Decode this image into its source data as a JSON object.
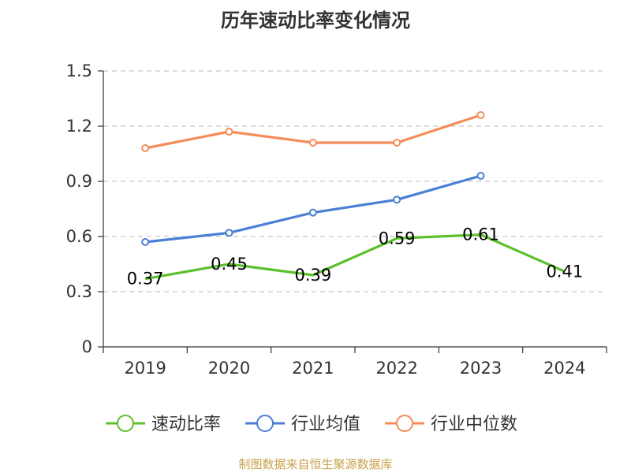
{
  "chart_data": {
    "type": "line",
    "title": "历年速动比率变化情况",
    "categories": [
      "2019",
      "2020",
      "2021",
      "2022",
      "2023",
      "2024"
    ],
    "yticks": [
      "0",
      "0.3",
      "0.6",
      "0.9",
      "1.2",
      "1.5"
    ],
    "ylim": [
      0,
      1.5
    ],
    "grid": true,
    "legend_position": "bottom",
    "series": [
      {
        "name": "速动比率",
        "color": "#5cc02c",
        "values": [
          0.37,
          0.45,
          0.39,
          0.59,
          0.61,
          0.41
        ],
        "labels": [
          "0.37",
          "0.45",
          "0.39",
          "0.59",
          "0.61",
          "0.41"
        ],
        "markers": false
      },
      {
        "name": "行业均值",
        "color": "#4a7fd6",
        "values": [
          0.57,
          0.62,
          0.73,
          0.8,
          0.93,
          null
        ],
        "markers": true
      },
      {
        "name": "行业中位数",
        "color": "#f58c5a",
        "values": [
          1.08,
          1.17,
          1.11,
          1.11,
          1.26,
          null
        ],
        "markers": true
      }
    ]
  },
  "footer": {
    "source": "制图数据来自恒生聚源数据库"
  }
}
